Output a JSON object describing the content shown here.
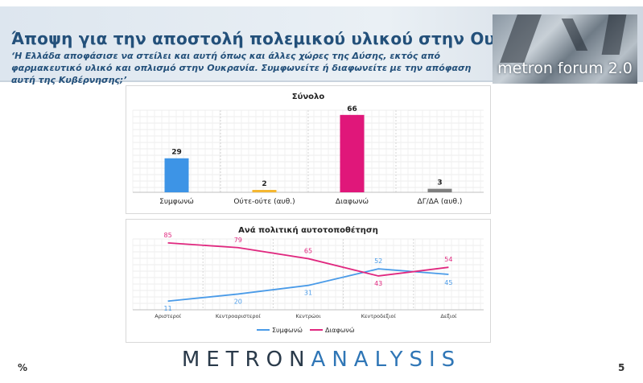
{
  "header": {
    "title": "Άποψη για την αποστολή πολεμικού υλικού στην Ουκρανία",
    "subtitle": "‘Η Ελλάδα αποφάσισε να στείλει και αυτή όπως και άλλες χώρες της Δύσης, εκτός από φαρμακευτικό υλικό και οπλισμό στην Ουκρανία. Συμφωνείτε ή διαφωνείτε με την απόφαση αυτή της Κυβέρνησης;’",
    "logo_text": "metron forum 2.0"
  },
  "footer": {
    "brand_part1": "METRON",
    "brand_part2": "ANALYSIS",
    "unit": "%",
    "page_number": "5"
  },
  "colors": {
    "bar_agree": "#3d94e6",
    "bar_neither": "#f5b731",
    "bar_disagree": "#e0177a",
    "bar_dk": "#7f7f7f",
    "line_agree": "#4a9be8",
    "line_disagree": "#e0287f"
  },
  "chart_data": [
    {
      "type": "bar",
      "title": "Σύνολο",
      "categories": [
        "Συμφωνώ",
        "Ούτε-ούτε (αυθ.)",
        "Διαφωνώ",
        "ΔΓ/ΔΑ (αυθ.)"
      ],
      "values": [
        29,
        2,
        66,
        3
      ],
      "ylim": [
        0,
        70
      ],
      "grid": true
    },
    {
      "type": "line",
      "title": "Ανά πολιτική αυτοτοποθέτηση",
      "categories": [
        "Αριστεροί",
        "Κεντροαριστεροί",
        "Κεντρώοι",
        "Κεντροδεξιοί",
        "Δεξιοί"
      ],
      "series": [
        {
          "name": "Συμφωνώ",
          "values": [
            11,
            20,
            31,
            52,
            45
          ]
        },
        {
          "name": "Διαφωνώ",
          "values": [
            85,
            79,
            65,
            43,
            54
          ]
        }
      ],
      "ylim": [
        0,
        90
      ],
      "legend": "bottom",
      "grid": true
    }
  ]
}
